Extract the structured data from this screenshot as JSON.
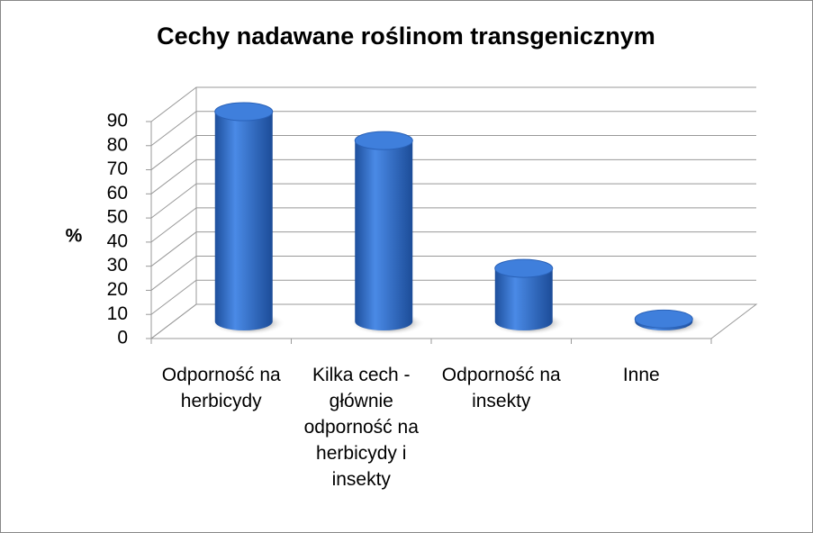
{
  "chart_data": {
    "type": "bar3d",
    "title": "Cechy nadawane roślinom transgenicznym",
    "y_label": "%",
    "categories": [
      "Odporność na herbicydy",
      "Kilka cech - głównie odporność na herbicydy i insekty",
      "Odporność na insekty",
      "Inne"
    ],
    "values": [
      87,
      75,
      22,
      1
    ],
    "color": "#2f6ccc",
    "ylim": [
      0,
      90
    ],
    "yticks": [
      0,
      10,
      20,
      30,
      40,
      50,
      60,
      70,
      80,
      90
    ],
    "grid": true
  }
}
